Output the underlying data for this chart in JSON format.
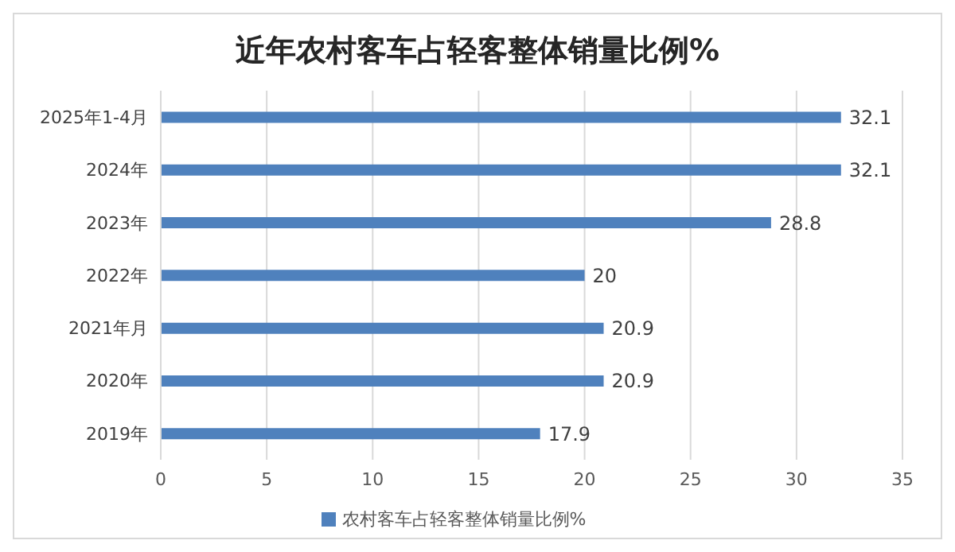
{
  "chart_data": {
    "type": "bar",
    "orientation": "horizontal",
    "title": "近年农村客车占轻客整体销量比例%",
    "categories": [
      "2025年1-4月",
      "2024年",
      "2023年",
      "2022年",
      "2021年月",
      "2020年",
      "2019年"
    ],
    "series": [
      {
        "name": "农村客车占轻客整体销量比例%",
        "color": "#4f81bd",
        "values": [
          32.1,
          32.1,
          28.8,
          20,
          20.9,
          20.9,
          17.9
        ]
      }
    ],
    "xlim": [
      0,
      35
    ],
    "xticks": [
      0,
      5,
      10,
      15,
      20,
      25,
      30,
      35
    ],
    "grid": "x",
    "legend": "bottom",
    "data_labels": true
  }
}
